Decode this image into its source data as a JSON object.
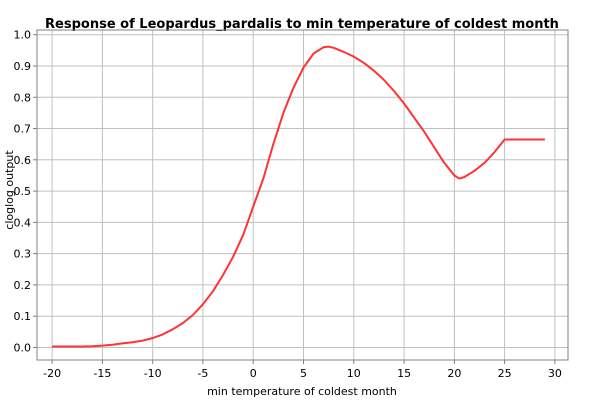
{
  "chart_data": {
    "type": "line",
    "title": "Response of Leopardus_pardalis to min temperature of coldest month",
    "xlabel": "min temperature of coldest month",
    "ylabel": "cloglog output",
    "xlim": [
      -21.5,
      31.3
    ],
    "ylim": [
      -0.04,
      1.015
    ],
    "xticks": [
      -20,
      -15,
      -10,
      -5,
      0,
      5,
      10,
      15,
      20,
      25,
      30
    ],
    "yticks": [
      0.0,
      0.1,
      0.2,
      0.3,
      0.4,
      0.5,
      0.6,
      0.7,
      0.8,
      0.9,
      1.0
    ],
    "xtick_labels": [
      "-20",
      "-15",
      "-10",
      "-5",
      "0",
      "5",
      "10",
      "15",
      "20",
      "25",
      "30"
    ],
    "ytick_labels": [
      "0.0",
      "0.1",
      "0.2",
      "0.3",
      "0.4",
      "0.5",
      "0.6",
      "0.7",
      "0.8",
      "0.9",
      "1.0"
    ],
    "grid": true,
    "series": [
      {
        "color": "#ff3333",
        "x": [
          -20,
          -17,
          -16,
          -15,
          -14,
          -13,
          -12,
          -11,
          -10,
          -9,
          -8,
          -7,
          -6,
          -5,
          -4,
          -3,
          -2,
          -1,
          0,
          1,
          2,
          3,
          4,
          5,
          6,
          7,
          7.5,
          8,
          9,
          10,
          11,
          12,
          13,
          14,
          15,
          16,
          17,
          18,
          19,
          20,
          20.5,
          21,
          22,
          23,
          24,
          25,
          26,
          27,
          28,
          29
        ],
        "y": [
          0.003,
          0.003,
          0.004,
          0.006,
          0.009,
          0.013,
          0.017,
          0.022,
          0.03,
          0.042,
          0.058,
          0.078,
          0.104,
          0.138,
          0.18,
          0.232,
          0.29,
          0.36,
          0.45,
          0.54,
          0.65,
          0.75,
          0.83,
          0.895,
          0.94,
          0.96,
          0.962,
          0.958,
          0.945,
          0.93,
          0.91,
          0.885,
          0.855,
          0.82,
          0.78,
          0.735,
          0.69,
          0.64,
          0.59,
          0.55,
          0.54,
          0.545,
          0.565,
          0.59,
          0.625,
          0.665,
          0.665,
          0.665,
          0.665,
          0.665
        ]
      }
    ]
  }
}
